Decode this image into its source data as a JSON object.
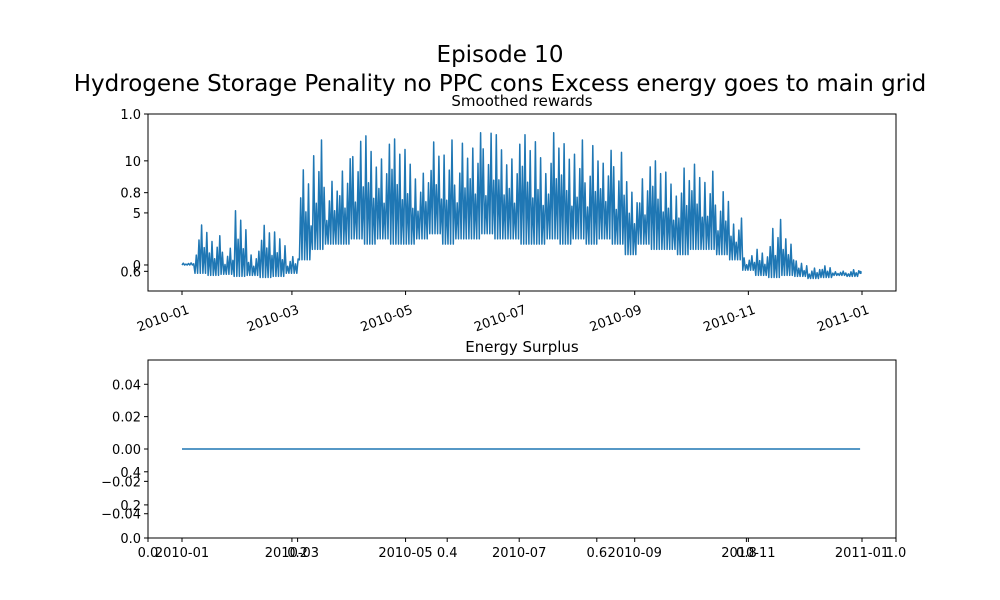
{
  "figure": {
    "title_line1": "Episode 10",
    "title_line2": "Hydrogene Storage Penality  no PPC cons Excess energy goes to main grid"
  },
  "colors": {
    "series": "#1f77b4",
    "axes": "#000000",
    "background": "#ffffff"
  },
  "chart_data": [
    {
      "type": "line",
      "title": "Smoothed rewards",
      "x_type": "date",
      "xlim": [
        "2010-01-01",
        "2011-01-01"
      ],
      "ylim": [
        -2.5,
        14.5
      ],
      "yticks": [
        0,
        5,
        10
      ],
      "xticks": [
        "2010-01",
        "2010-03",
        "2010-05",
        "2010-07",
        "2010-09",
        "2010-11",
        "2011-01"
      ],
      "xtick_rotation": 20,
      "overlay_axis": {
        "ylim": [
          0.55,
          1.0
        ],
        "yticks": [
          "0.6",
          "0.8",
          "1.0"
        ]
      },
      "series": [
        {
          "color": "#1f77b4",
          "x": [
            "2010-01-01",
            "2010-01-08",
            "2010-01-15",
            "2010-01-22",
            "2010-01-29",
            "2010-02-05",
            "2010-02-12",
            "2010-02-19",
            "2010-02-26",
            "2010-03-05",
            "2010-03-12",
            "2010-03-19",
            "2010-03-26",
            "2010-04-02",
            "2010-04-09",
            "2010-04-16",
            "2010-04-23",
            "2010-04-30",
            "2010-05-07",
            "2010-05-14",
            "2010-05-21",
            "2010-05-28",
            "2010-06-04",
            "2010-06-11",
            "2010-06-18",
            "2010-06-25",
            "2010-07-02",
            "2010-07-09",
            "2010-07-16",
            "2010-07-23",
            "2010-07-30",
            "2010-08-06",
            "2010-08-13",
            "2010-08-20",
            "2010-08-27",
            "2010-09-03",
            "2010-09-10",
            "2010-09-17",
            "2010-09-24",
            "2010-10-01",
            "2010-10-08",
            "2010-10-15",
            "2010-10-22",
            "2010-10-29",
            "2010-11-05",
            "2010-11-12",
            "2010-11-19",
            "2010-11-26",
            "2010-12-03",
            "2010-12-10",
            "2010-12-17",
            "2010-12-24",
            "2010-12-31"
          ],
          "y": [
            0,
            -0.8,
            -1.0,
            -0.9,
            -1.1,
            -1.0,
            -1.2,
            -1.1,
            -0.8,
            0.5,
            1.5,
            2.0,
            2.0,
            2.5,
            2.0,
            2.5,
            2.0,
            2.0,
            2.5,
            3.0,
            2.0,
            2.5,
            2.5,
            3.0,
            2.5,
            2.5,
            2.0,
            2.0,
            2.5,
            2.0,
            2.5,
            2.0,
            2.5,
            2.0,
            1.0,
            2.0,
            1.5,
            1.5,
            1.0,
            1.5,
            1.5,
            1.0,
            0.5,
            -0.5,
            -1.0,
            -1.2,
            -1.0,
            -1.1,
            -1.3,
            -1.2,
            -1.0,
            -1.1,
            -0.8
          ],
          "y_peak": [
            0.2,
            4.2,
            2.8,
            1.8,
            5.2,
            1.5,
            3.8,
            3.5,
            0.8,
            9.8,
            12.0,
            8.5,
            10.2,
            12.6,
            12.4,
            12.3,
            12.1,
            11.8,
            8.8,
            12.5,
            12.0,
            12.4,
            12.7,
            13.4,
            12.5,
            12.3,
            12.5,
            12.6,
            12.7,
            12.4,
            12.0,
            12.2,
            11.0,
            11.5,
            8.0,
            10.0,
            10.0,
            9.5,
            9.3,
            10.3,
            9.0,
            7.5,
            4.5,
            1.0,
            1.5,
            4.8,
            2.5,
            0.5,
            -0.3,
            0.0,
            -0.6,
            -0.4,
            -0.6
          ]
        }
      ]
    },
    {
      "type": "line",
      "title": "Energy Surplus",
      "x_type": "date",
      "xlim": [
        "2010-01-01",
        "2011-01-01"
      ],
      "ylim": [
        -0.055,
        0.055
      ],
      "yticks": [
        "−0.04",
        "−0.02",
        "0.00",
        "0.02",
        "0.04"
      ],
      "xticks": [
        "2010-01",
        "2010-03",
        "2010-05",
        "2010-07",
        "2010-09",
        "2010-11",
        "2011-01"
      ],
      "overlay_axis": {
        "xticks": [
          "0.0",
          "0.2",
          "0.4",
          "0.6",
          "0.8",
          "1.0"
        ],
        "yticks": [
          "0.0",
          "0.2",
          "0.4"
        ]
      },
      "series": [
        {
          "color": "#1f77b4",
          "x": [
            "2010-01-01",
            "2010-12-31"
          ],
          "y": [
            0,
            0
          ]
        }
      ]
    }
  ]
}
